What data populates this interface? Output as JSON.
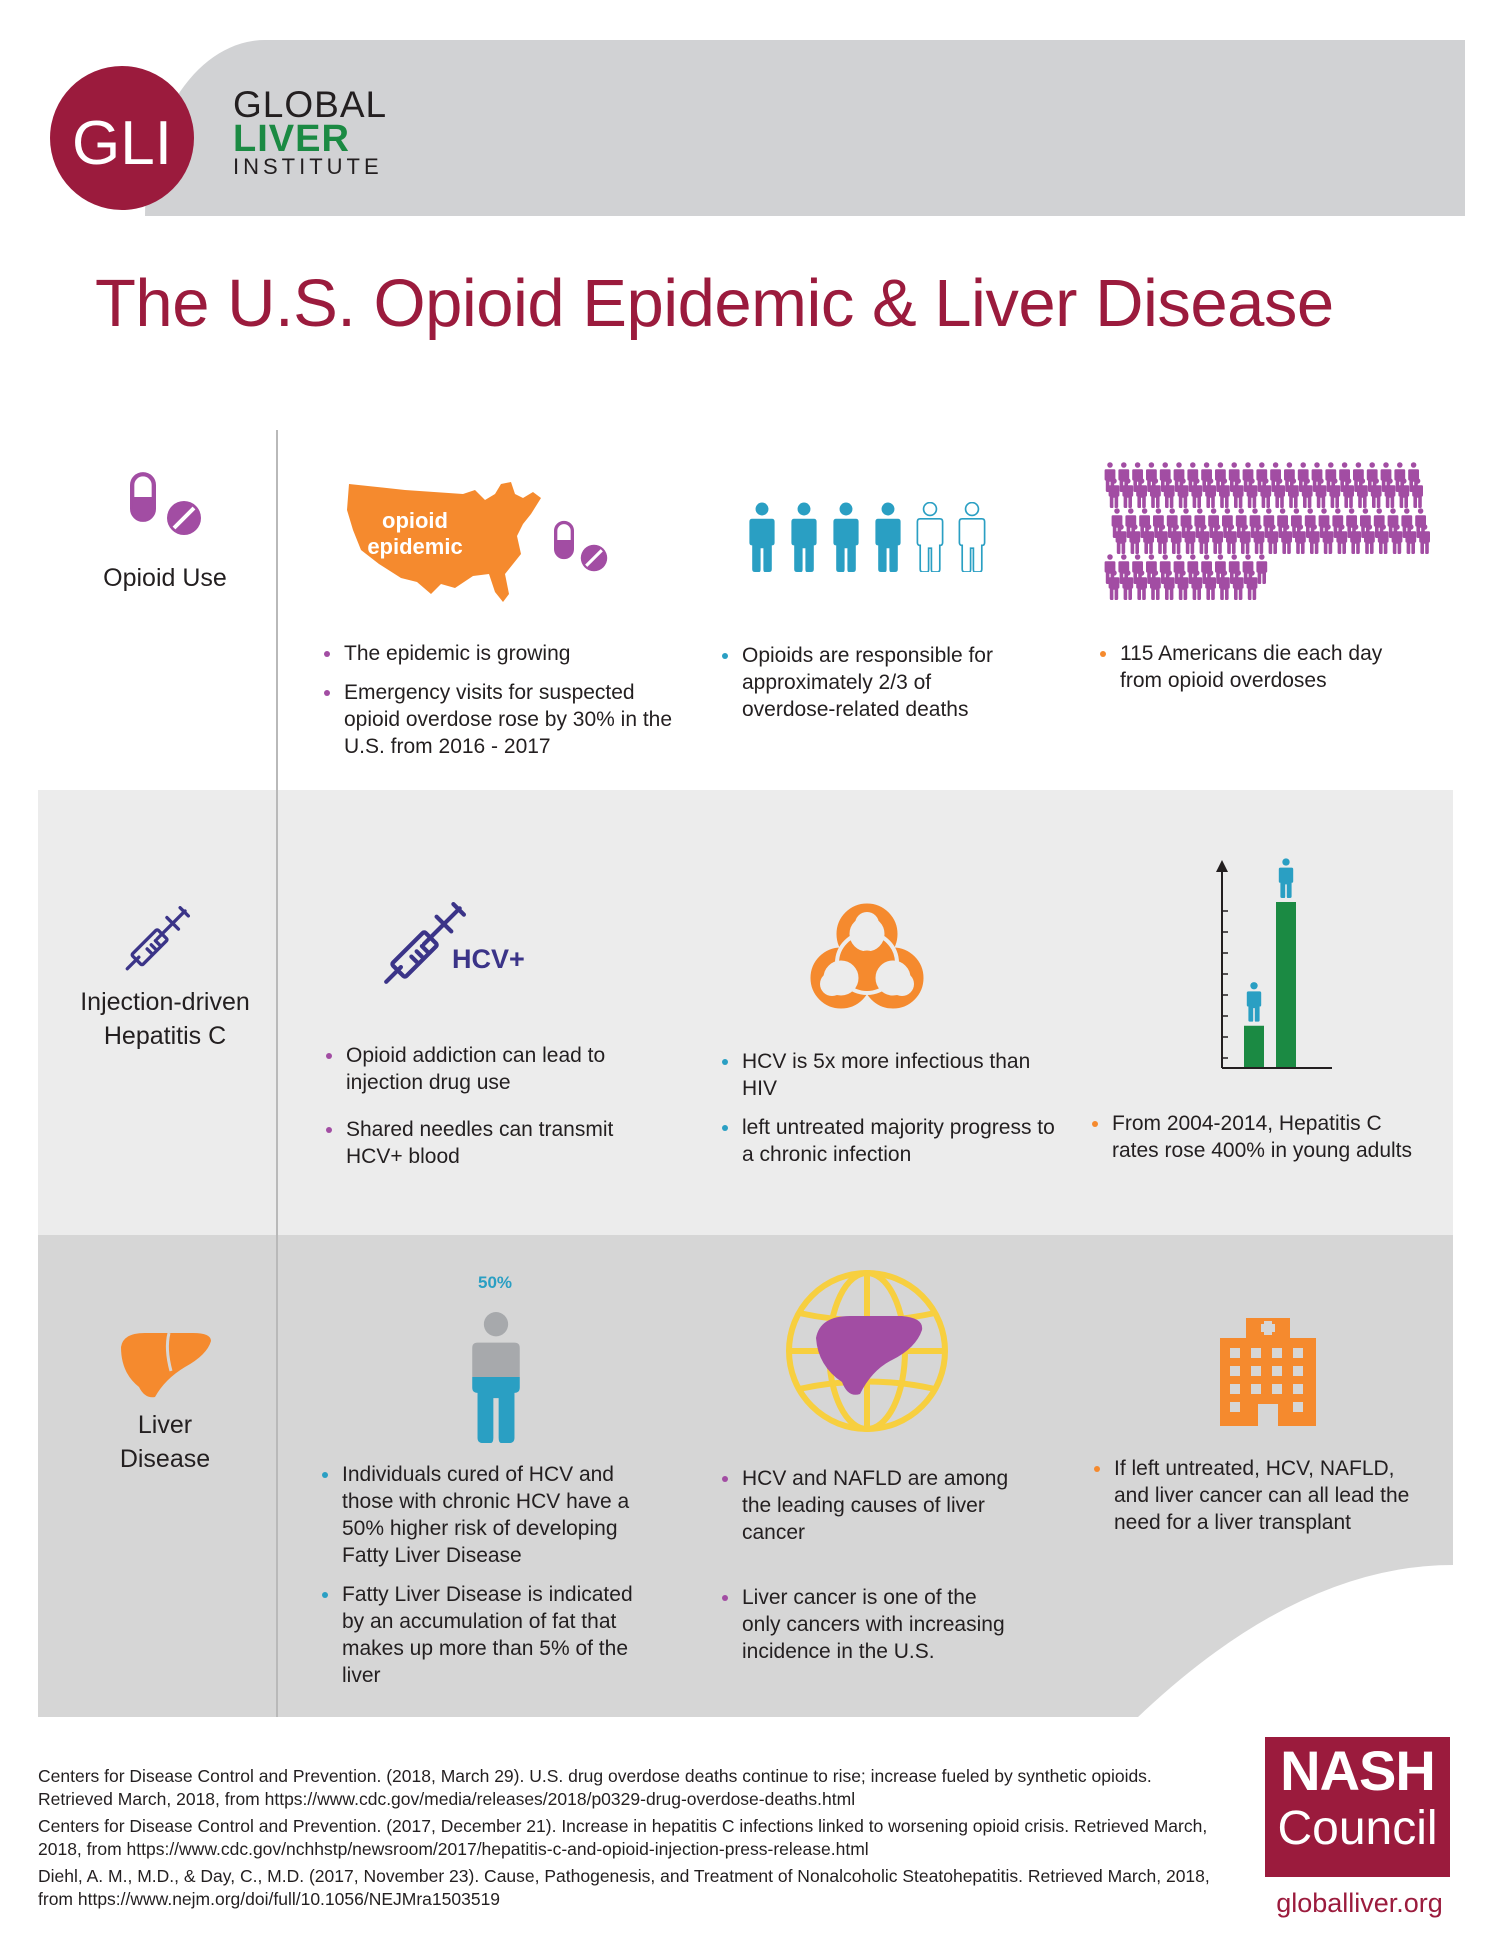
{
  "brand": {
    "logo_text": "GLI",
    "line1": "GLOBAL",
    "line2": "LIVER",
    "line3": "INSTITUTE"
  },
  "title": "The U.S. Opioid Epidemic & Liver Disease",
  "colors": {
    "maroon": "#9b1b3d",
    "green": "#1b8a43",
    "orange": "#f58a2e",
    "purple": "#a24da3",
    "teal": "#2a9fc3",
    "navy": "#3b3488"
  },
  "sections": {
    "opioid": {
      "label": "Opioid Use",
      "icon": "pill-capsule-icon",
      "map_label_line1": "opioid",
      "map_label_line2": "epidemic",
      "col1": [
        "The epidemic is growing",
        "Emergency visits for suspected opioid overdose rose by 30% in the U.S. from 2016 - 2017"
      ],
      "col2": [
        "Opioids are responsible for approximately 2/3 of overdose-related deaths"
      ],
      "col3": [
        "115 Americans die each day from opioid overdoses"
      ],
      "people_total": 6,
      "people_filled": 4,
      "crowd_count": 115
    },
    "injection": {
      "label_line1": "Injection-driven",
      "label_line2": "Hepatitis C",
      "icon": "syringe-icon",
      "hcv_label": "HCV+",
      "col1": [
        "Opioid addiction can lead to injection drug use",
        "Shared needles can transmit HCV+ blood"
      ],
      "col2": [
        "HCV is 5x more infectious than HIV",
        "left untreated majority progress to a chronic infection"
      ],
      "col3": [
        "From 2004-2014, Hepatitis C rates rose 400% in young adults"
      ],
      "bar_values": [
        1,
        4
      ]
    },
    "liver": {
      "label_line1": "Liver",
      "label_line2": "Disease",
      "icon": "liver-icon",
      "percent_label": "50%",
      "person_fill_fraction": 0.5,
      "col1": [
        "Individuals cured of HCV and those with chronic HCV have a 50% higher risk of developing Fatty Liver Disease",
        "Fatty Liver Disease is indicated by an accumulation of fat that makes up more than 5% of the liver"
      ],
      "col2": [
        "HCV and NAFLD are among the leading causes of liver cancer",
        "Liver cancer is one of the only cancers with increasing incidence in the U.S."
      ],
      "col3": [
        "If left untreated, HCV, NAFLD, and liver cancer can all lead the need for a liver transplant"
      ]
    }
  },
  "references": [
    "Centers for Disease Control and Prevention. (2018, March 29). U.S. drug overdose deaths continue to rise; increase fueled by synthetic opioids. Retrieved March, 2018, from https://www.cdc.gov/media/releases/2018/p0329-drug-overdose-deaths.html",
    "Centers for Disease Control and Prevention. (2017, December 21). Increase in hepatitis C infections linked to worsening opioid crisis. Retrieved March, 2018, from https://www.cdc.gov/nchhstp/newsroom/2017/hepatitis-c-and-opioid-injection-press-release.html",
    "Diehl, A. M., M.D., & Day, C., M.D. (2017, November 23). Cause, Pathogenesis, and Treatment of Nonalcoholic Steatohepatitis. Retrieved March, 2018, from https://www.nejm.org/doi/full/10.1056/NEJMra1503519"
  ],
  "footer": {
    "nash": "NASH",
    "council": "Council",
    "site": "globalliver.org"
  }
}
